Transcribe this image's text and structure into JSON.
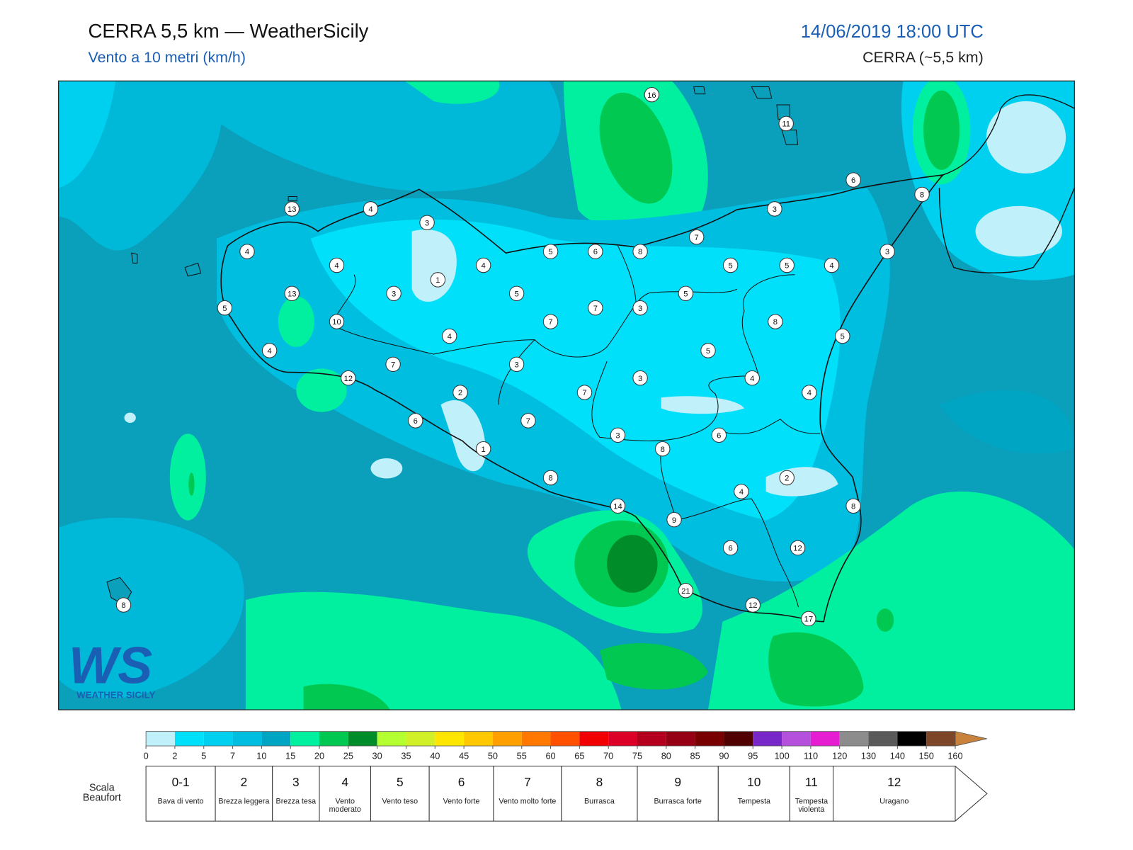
{
  "header": {
    "title": "CERRA 5,5 km — WeatherSicily",
    "subtitle": "Vento a 10 metri (km/h)",
    "datetime": "14/06/2019 18:00 UTC",
    "model": "CERRA (~5,5 km)"
  },
  "logo": {
    "mark": "WS",
    "name": "WEATHER SICILY"
  },
  "stations": [
    16,
    11,
    6,
    8,
    13,
    4,
    3,
    3,
    7,
    5,
    6,
    8,
    4,
    4,
    1,
    4,
    5,
    5,
    4,
    3,
    13,
    3,
    5,
    5,
    5,
    7,
    3,
    8,
    10,
    7,
    4,
    5,
    4,
    5,
    7,
    3,
    12,
    3,
    4,
    2,
    7,
    4,
    6,
    7,
    3,
    6,
    8,
    1,
    8,
    2,
    4,
    14,
    8,
    9,
    6,
    12,
    21,
    12,
    17,
    8
  ],
  "colorbar": {
    "ticks": [
      0,
      2,
      5,
      7,
      10,
      15,
      20,
      25,
      30,
      35,
      40,
      45,
      50,
      55,
      60,
      65,
      70,
      75,
      80,
      85,
      90,
      95,
      100,
      110,
      120,
      130,
      140,
      150,
      160
    ],
    "colors": [
      "#c0f0fa",
      "#00e0fa",
      "#00d0f0",
      "#00bee0",
      "#00a5c3",
      "#00f0a0",
      "#00c850",
      "#008c28",
      "#b4ff32",
      "#d2f028",
      "#ffe600",
      "#ffc800",
      "#ffa000",
      "#ff7800",
      "#ff5000",
      "#f00000",
      "#dc0028",
      "#b4001e",
      "#960014",
      "#780000",
      "#500000",
      "#7828c8",
      "#b450dc",
      "#e61ed2",
      "#8c8c8c",
      "#5a5a5a",
      "#000000",
      "#7d4628"
    ],
    "arrow_color": "#c8823c"
  },
  "beaufort": {
    "label": "Scala Beaufort",
    "levels": [
      {
        "force": "0-1",
        "description": "Bava di vento"
      },
      {
        "force": 2,
        "description": "Brezza leggera"
      },
      {
        "force": 3,
        "description": "Brezza tesa"
      },
      {
        "force": 4,
        "description": "Vento moderato"
      },
      {
        "force": 5,
        "description": "Vento teso"
      },
      {
        "force": 6,
        "description": "Vento forte"
      },
      {
        "force": 7,
        "description": "Vento molto forte"
      },
      {
        "force": 8,
        "description": "Burrasca"
      },
      {
        "force": 9,
        "description": "Burrasca forte"
      },
      {
        "force": 10,
        "description": "Tempesta"
      },
      {
        "force": 11,
        "description": "Tempesta violenta"
      },
      {
        "force": 12,
        "description": "Uragano"
      }
    ]
  }
}
